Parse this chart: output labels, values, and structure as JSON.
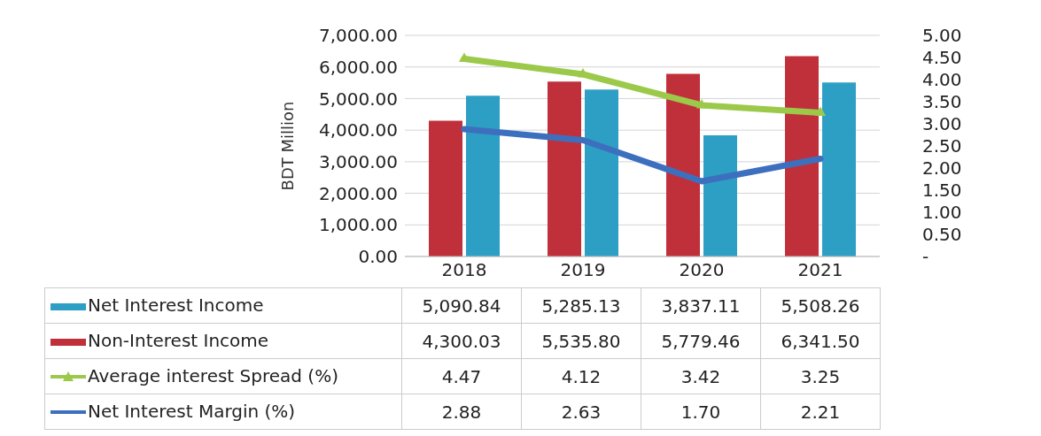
{
  "chart_data": {
    "type": "bar",
    "ylabel": "BDT Million",
    "categories": [
      "2018",
      "2019",
      "2020",
      "2021"
    ],
    "series": [
      {
        "name": "Net Interest Income",
        "color": "#2e9fc4",
        "values": [
          5090.84,
          5285.13,
          3837.11,
          5508.26
        ],
        "value_labels": [
          "5,090.84",
          "5,285.13",
          "3,837.11",
          "5,508.26"
        ]
      },
      {
        "name": "Non-Interest Income",
        "color": "#c0303a",
        "values": [
          4300.03,
          5535.8,
          5779.46,
          6341.5
        ],
        "value_labels": [
          "4,300.03",
          "5,535.80",
          "5,779.46",
          "6,341.50"
        ]
      },
      {
        "name": "Average interest Spread (%)",
        "type": "line",
        "axis": "y2",
        "marker": "triangle",
        "color": "#9cc94a",
        "values": [
          4.47,
          4.12,
          3.42,
          3.25
        ],
        "value_labels": [
          "4.47",
          "4.12",
          "3.42",
          "3.25"
        ]
      },
      {
        "name": "Net Interest Margin (%)",
        "type": "line",
        "axis": "y2",
        "marker": "none",
        "color": "#3d6fbf",
        "values": [
          2.88,
          2.63,
          1.7,
          2.21
        ],
        "value_labels": [
          "2.88",
          "2.63",
          "1.70",
          "2.21"
        ]
      }
    ],
    "ylim": [
      0,
      7000
    ],
    "yticks": [
      {
        "value": 0,
        "label": "0.00"
      },
      {
        "value": 1000,
        "label": "1,000.00"
      },
      {
        "value": 2000,
        "label": "2,000.00"
      },
      {
        "value": 3000,
        "label": "3,000.00"
      },
      {
        "value": 4000,
        "label": "4,000.00"
      },
      {
        "value": 5000,
        "label": "5,000.00"
      },
      {
        "value": 6000,
        "label": "6,000.00"
      },
      {
        "value": 7000,
        "label": "7,000.00"
      }
    ],
    "y2lim": [
      0,
      5
    ],
    "y2ticks": [
      {
        "value": 0,
        "label": "-"
      },
      {
        "value": 0.5,
        "label": "0.50"
      },
      {
        "value": 1,
        "label": "1.00"
      },
      {
        "value": 1.5,
        "label": "1.50"
      },
      {
        "value": 2,
        "label": "2.00"
      },
      {
        "value": 2.5,
        "label": "2.50"
      },
      {
        "value": 3,
        "label": "3.00"
      },
      {
        "value": 3.5,
        "label": "3.50"
      },
      {
        "value": 4,
        "label": "4.00"
      },
      {
        "value": 4.5,
        "label": "4.50"
      },
      {
        "value": 5,
        "label": "5.00"
      }
    ],
    "grid": "y",
    "legend": "bottom"
  }
}
